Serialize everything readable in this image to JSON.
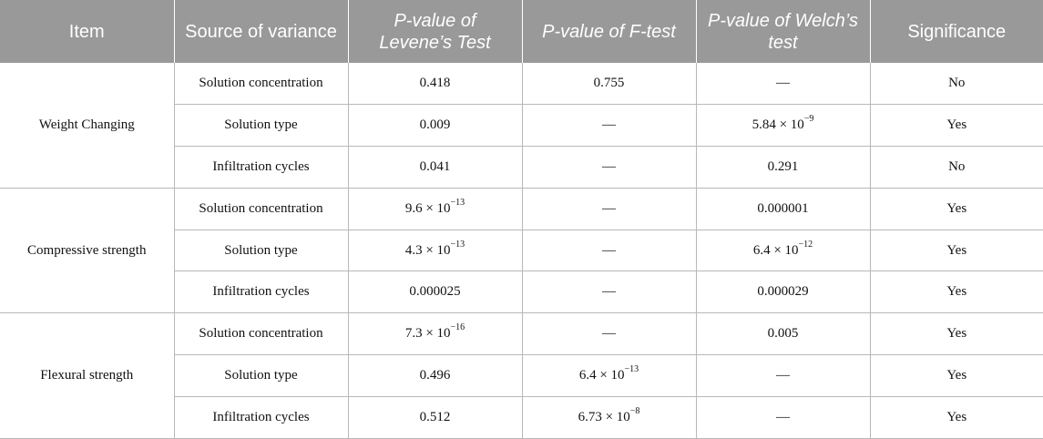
{
  "header": {
    "item": "Item",
    "source_of_variance": "Source of variance",
    "levene": "P-value of Levene’s Test",
    "ftest": "P-value of F-test",
    "welch": "P-value of Welch’s test",
    "significance": "Significance"
  },
  "groups": [
    {
      "item": "Weight Changing",
      "rows": [
        {
          "source": "Solution concentration",
          "levene": {
            "base": "0.418",
            "exp": null
          },
          "ftest": {
            "base": "0.755",
            "exp": null
          },
          "welch": {
            "base": "—",
            "exp": null
          },
          "significance": "No"
        },
        {
          "source": "Solution type",
          "levene": {
            "base": "0.009",
            "exp": null
          },
          "ftest": {
            "base": "—",
            "exp": null
          },
          "welch": {
            "base": "5.84 × 10",
            "exp": "−9"
          },
          "significance": "Yes"
        },
        {
          "source": "Infiltration cycles",
          "levene": {
            "base": "0.041",
            "exp": null
          },
          "ftest": {
            "base": "—",
            "exp": null
          },
          "welch": {
            "base": "0.291",
            "exp": null
          },
          "significance": "No"
        }
      ]
    },
    {
      "item": "Compressive strength",
      "rows": [
        {
          "source": "Solution concentration",
          "levene": {
            "base": "9.6 × 10",
            "exp": "−13"
          },
          "ftest": {
            "base": "—",
            "exp": null
          },
          "welch": {
            "base": "0.000001",
            "exp": null
          },
          "significance": "Yes"
        },
        {
          "source": "Solution type",
          "levene": {
            "base": "4.3 × 10",
            "exp": "−13"
          },
          "ftest": {
            "base": "—",
            "exp": null
          },
          "welch": {
            "base": "6.4 × 10",
            "exp": "−12"
          },
          "significance": "Yes"
        },
        {
          "source": "Infiltration cycles",
          "levene": {
            "base": "0.000025",
            "exp": null
          },
          "ftest": {
            "base": "—",
            "exp": null
          },
          "welch": {
            "base": "0.000029",
            "exp": null
          },
          "significance": "Yes"
        }
      ]
    },
    {
      "item": "Flexural strength",
      "rows": [
        {
          "source": "Solution concentration",
          "levene": {
            "base": "7.3 × 10",
            "exp": "−16"
          },
          "ftest": {
            "base": "—",
            "exp": null
          },
          "welch": {
            "base": "0.005",
            "exp": null
          },
          "significance": "Yes"
        },
        {
          "source": "Solution type",
          "levene": {
            "base": "0.496",
            "exp": null
          },
          "ftest": {
            "base": "6.4 × 10",
            "exp": "−13"
          },
          "welch": {
            "base": "—",
            "exp": null
          },
          "significance": "Yes"
        },
        {
          "source": "Infiltration cycles",
          "levene": {
            "base": "0.512",
            "exp": null
          },
          "ftest": {
            "base": "6.73 × 10",
            "exp": "−8"
          },
          "welch": {
            "base": "—",
            "exp": null
          },
          "significance": "Yes"
        }
      ]
    }
  ]
}
